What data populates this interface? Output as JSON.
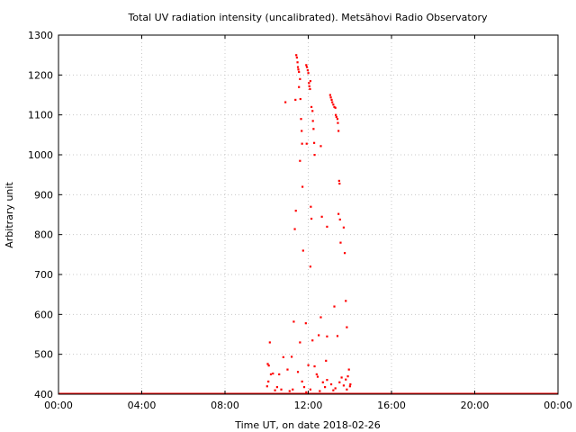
{
  "chart_data": {
    "type": "scatter",
    "title": "Total UV radiation intensity (uncalibrated). Metsähovi Radio Observatory",
    "xlabel": "Time UT, on date 2018-02-26",
    "ylabel": "Arbitrary unit",
    "xlim": [
      0,
      24
    ],
    "ylim": [
      400,
      1300
    ],
    "x_tick_values": [
      0,
      4,
      8,
      12,
      16,
      20,
      24
    ],
    "x_tick_labels": [
      "00:00",
      "04:00",
      "08:00",
      "12:00",
      "16:00",
      "20:00",
      "00:00"
    ],
    "y_ticks": [
      400,
      500,
      600,
      700,
      800,
      900,
      1000,
      1100,
      1200,
      1300
    ],
    "grid": true,
    "series_color": "#ff0000",
    "baseline": {
      "value": 400,
      "x_from": 0,
      "x_to": 24
    },
    "points": [
      [
        11.42,
        1250
      ],
      [
        11.45,
        1244
      ],
      [
        11.48,
        1232
      ],
      [
        11.5,
        1220
      ],
      [
        11.52,
        1214
      ],
      [
        11.55,
        1208
      ],
      [
        11.6,
        1190
      ],
      [
        11.62,
        1140
      ],
      [
        11.65,
        1090
      ],
      [
        11.68,
        1060
      ],
      [
        11.7,
        1028
      ],
      [
        11.6,
        985
      ],
      [
        11.72,
        920
      ],
      [
        11.75,
        760
      ],
      [
        11.4,
        860
      ],
      [
        11.35,
        814
      ],
      [
        11.3,
        582
      ],
      [
        11.38,
        1138
      ],
      [
        11.55,
        1170
      ],
      [
        10.9,
        1132
      ],
      [
        11.9,
        1225
      ],
      [
        11.93,
        1220
      ],
      [
        11.97,
        1212
      ],
      [
        12.0,
        1205
      ],
      [
        12.03,
        1180
      ],
      [
        12.05,
        1172
      ],
      [
        12.08,
        1165
      ],
      [
        12.1,
        1185
      ],
      [
        12.15,
        1120
      ],
      [
        12.2,
        1110
      ],
      [
        12.22,
        1085
      ],
      [
        12.25,
        1065
      ],
      [
        12.28,
        1030
      ],
      [
        12.3,
        1000
      ],
      [
        11.92,
        1028
      ],
      [
        12.1,
        720
      ],
      [
        12.12,
        870
      ],
      [
        12.15,
        840
      ],
      [
        12.6,
        1022
      ],
      [
        12.65,
        845
      ],
      [
        11.88,
        578
      ],
      [
        12.0,
        473
      ],
      [
        12.2,
        535
      ],
      [
        12.5,
        548
      ],
      [
        12.6,
        593
      ],
      [
        12.9,
        820
      ],
      [
        12.9,
        545
      ],
      [
        12.85,
        484
      ],
      [
        13.05,
        1150
      ],
      [
        13.08,
        1144
      ],
      [
        13.12,
        1138
      ],
      [
        13.15,
        1132
      ],
      [
        13.2,
        1126
      ],
      [
        13.25,
        1120
      ],
      [
        13.3,
        1118
      ],
      [
        13.32,
        1100
      ],
      [
        13.35,
        1095
      ],
      [
        13.4,
        1090
      ],
      [
        13.42,
        1080
      ],
      [
        13.45,
        1060
      ],
      [
        13.48,
        935
      ],
      [
        13.5,
        928
      ],
      [
        13.45,
        852
      ],
      [
        13.52,
        838
      ],
      [
        13.55,
        780
      ],
      [
        13.7,
        818
      ],
      [
        13.75,
        754
      ],
      [
        13.8,
        634
      ],
      [
        13.25,
        620
      ],
      [
        13.85,
        568
      ],
      [
        13.4,
        546
      ],
      [
        10.05,
        476
      ],
      [
        10.1,
        472
      ],
      [
        10.15,
        530
      ],
      [
        10.2,
        450
      ],
      [
        10.3,
        452
      ],
      [
        10.5,
        418
      ],
      [
        10.6,
        450
      ],
      [
        10.8,
        493
      ],
      [
        11.0,
        462
      ],
      [
        11.2,
        494
      ],
      [
        11.6,
        530
      ],
      [
        11.5,
        456
      ],
      [
        11.7,
        432
      ],
      [
        12.3,
        470
      ],
      [
        12.4,
        450
      ],
      [
        12.45,
        444
      ],
      [
        12.7,
        430
      ],
      [
        12.8,
        418
      ],
      [
        13.1,
        425
      ],
      [
        13.3,
        415
      ],
      [
        13.5,
        430
      ],
      [
        13.7,
        422
      ],
      [
        13.9,
        445
      ],
      [
        13.95,
        462
      ],
      [
        14.0,
        420
      ],
      [
        13.8,
        437
      ],
      [
        13.6,
        442
      ],
      [
        12.9,
        436
      ],
      [
        10.4,
        410
      ],
      [
        10.7,
        412
      ],
      [
        11.1,
        408
      ],
      [
        11.8,
        418
      ],
      [
        12.1,
        412
      ],
      [
        12.55,
        408
      ],
      [
        13.2,
        410
      ],
      [
        13.85,
        412
      ],
      [
        14.02,
        425
      ],
      [
        10.02,
        420
      ],
      [
        10.08,
        432
      ],
      [
        11.25,
        412
      ],
      [
        11.9,
        405
      ]
    ]
  }
}
